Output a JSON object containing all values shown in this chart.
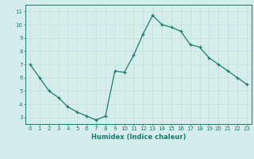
{
  "x": [
    0,
    1,
    2,
    3,
    4,
    5,
    6,
    7,
    8,
    9,
    10,
    11,
    12,
    13,
    14,
    15,
    16,
    17,
    18,
    19,
    20,
    21,
    22,
    23
  ],
  "y": [
    7.0,
    6.0,
    5.0,
    4.5,
    3.8,
    3.4,
    3.1,
    2.8,
    3.1,
    6.5,
    6.4,
    7.7,
    9.3,
    10.7,
    10.0,
    9.8,
    9.5,
    8.5,
    8.3,
    7.5,
    7.0,
    6.5,
    6.0,
    5.5
  ],
  "xlabel": "Humidex (Indice chaleur)",
  "xlim_min": -0.5,
  "xlim_max": 23.5,
  "ylim_min": 2.5,
  "ylim_max": 11.5,
  "yticks": [
    3,
    4,
    5,
    6,
    7,
    8,
    9,
    10,
    11
  ],
  "xticks": [
    0,
    1,
    2,
    3,
    4,
    5,
    6,
    7,
    8,
    9,
    10,
    11,
    12,
    13,
    14,
    15,
    16,
    17,
    18,
    19,
    20,
    21,
    22,
    23
  ],
  "line_color": "#1a7a6e",
  "marker": "+",
  "bg_color": "#d6eeeb",
  "grid_color": "#c8e0dc",
  "axis_color": "#1a7a6e",
  "tick_color": "#1a7a6e",
  "label_color": "#1a7a6e",
  "tick_fontsize": 5.0,
  "xlabel_fontsize": 6.0,
  "linewidth": 0.9,
  "markersize": 3.5,
  "markeredgewidth": 0.9
}
